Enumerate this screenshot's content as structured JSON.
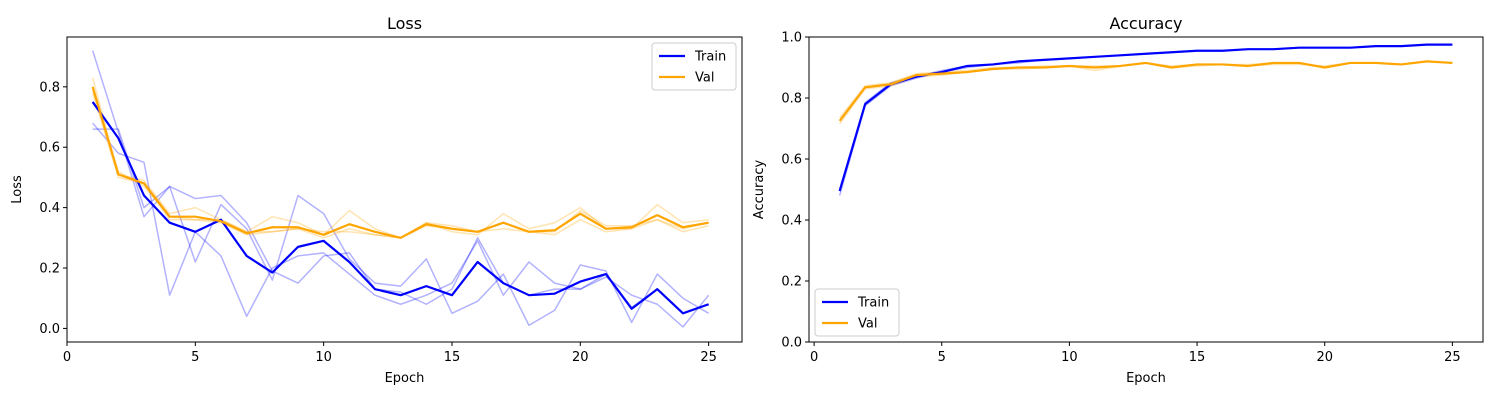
{
  "chart_data": [
    {
      "type": "line",
      "title": "Loss",
      "xlabel": "Epoch",
      "ylabel": "Loss",
      "xlim": [
        0,
        26.3
      ],
      "ylim": [
        -0.045,
        0.965
      ],
      "xticks": [
        0,
        5,
        10,
        15,
        20,
        25
      ],
      "yticks": [
        0.0,
        0.2,
        0.4,
        0.6,
        0.8
      ],
      "ytick_labels": [
        "0.0",
        "0.2",
        "0.4",
        "0.6",
        "0.8"
      ],
      "grid": false,
      "legend_position": "top-right",
      "x": [
        1,
        2,
        3,
        4,
        5,
        6,
        7,
        8,
        9,
        10,
        11,
        12,
        13,
        14,
        15,
        16,
        17,
        18,
        19,
        20,
        21,
        22,
        23,
        24,
        25
      ],
      "series": [
        {
          "name": "Train",
          "color": "#0000ff",
          "values": [
            0.75,
            0.63,
            0.44,
            0.35,
            0.32,
            0.36,
            0.24,
            0.185,
            0.27,
            0.29,
            0.22,
            0.13,
            0.11,
            0.14,
            0.11,
            0.22,
            0.15,
            0.11,
            0.115,
            0.155,
            0.18,
            0.065,
            0.13,
            0.05,
            0.08
          ],
          "runs": [
            [
              0.92,
              0.65,
              0.37,
              0.47,
              0.22,
              0.41,
              0.33,
              0.16,
              0.44,
              0.38,
              0.23,
              0.15,
              0.14,
              0.23,
              0.05,
              0.09,
              0.18,
              0.01,
              0.06,
              0.21,
              0.19,
              0.02,
              0.18,
              0.1,
              0.05
            ],
            [
              0.68,
              0.58,
              0.55,
              0.11,
              0.32,
              0.24,
              0.04,
              0.2,
              0.24,
              0.25,
              0.18,
              0.11,
              0.08,
              0.11,
              0.15,
              0.29,
              0.11,
              0.22,
              0.15,
              0.13,
              0.17,
              0.11,
              0.08,
              0.005,
              0.11
            ],
            [
              0.66,
              0.66,
              0.4,
              0.47,
              0.43,
              0.44,
              0.35,
              0.19,
              0.15,
              0.24,
              0.25,
              0.13,
              0.12,
              0.08,
              0.13,
              0.3,
              0.15,
              0.11,
              0.13,
              0.13,
              0.18,
              0.07,
              0.13,
              0.05,
              0.08
            ]
          ]
        },
        {
          "name": "Val",
          "color": "#ffa500",
          "values": [
            0.8,
            0.51,
            0.48,
            0.37,
            0.37,
            0.355,
            0.315,
            0.335,
            0.335,
            0.31,
            0.345,
            0.32,
            0.3,
            0.345,
            0.33,
            0.32,
            0.35,
            0.32,
            0.325,
            0.38,
            0.33,
            0.335,
            0.375,
            0.335,
            0.35
          ],
          "runs": [
            [
              0.83,
              0.51,
              0.49,
              0.38,
              0.4,
              0.36,
              0.32,
              0.37,
              0.35,
              0.31,
              0.39,
              0.33,
              0.3,
              0.35,
              0.32,
              0.31,
              0.38,
              0.33,
              0.35,
              0.4,
              0.33,
              0.33,
              0.41,
              0.35,
              0.36
            ],
            [
              0.79,
              0.52,
              0.47,
              0.37,
              0.36,
              0.35,
              0.31,
              0.32,
              0.33,
              0.32,
              0.32,
              0.31,
              0.3,
              0.35,
              0.34,
              0.32,
              0.35,
              0.32,
              0.32,
              0.39,
              0.34,
              0.34,
              0.36,
              0.32,
              0.34
            ],
            [
              0.78,
              0.5,
              0.48,
              0.36,
              0.36,
              0.36,
              0.32,
              0.32,
              0.33,
              0.3,
              0.33,
              0.31,
              0.3,
              0.34,
              0.33,
              0.32,
              0.33,
              0.32,
              0.31,
              0.36,
              0.32,
              0.33,
              0.36,
              0.33,
              0.35
            ]
          ]
        }
      ]
    },
    {
      "type": "line",
      "title": "Accuracy",
      "xlabel": "Epoch",
      "ylabel": "Accuracy",
      "xlim": [
        -0.2,
        26.2
      ],
      "ylim": [
        0.0,
        1.0
      ],
      "xticks": [
        0,
        5,
        10,
        15,
        20,
        25
      ],
      "yticks": [
        0.0,
        0.2,
        0.4,
        0.6,
        0.8,
        1.0
      ],
      "ytick_labels": [
        "0.0",
        "0.2",
        "0.4",
        "0.6",
        "0.8",
        "1.0"
      ],
      "grid": false,
      "legend_position": "bottom-left",
      "x": [
        1,
        2,
        3,
        4,
        5,
        6,
        7,
        8,
        9,
        10,
        11,
        12,
        13,
        14,
        15,
        16,
        17,
        18,
        19,
        20,
        21,
        22,
        23,
        24,
        25
      ],
      "series": [
        {
          "name": "Train",
          "color": "#0000ff",
          "values": [
            0.495,
            0.78,
            0.845,
            0.87,
            0.885,
            0.905,
            0.91,
            0.92,
            0.925,
            0.93,
            0.935,
            0.94,
            0.945,
            0.95,
            0.955,
            0.955,
            0.96,
            0.96,
            0.965,
            0.965,
            0.965,
            0.97,
            0.97,
            0.975,
            0.975
          ],
          "runs": [
            [
              0.48,
              0.775,
              0.84,
              0.865,
              0.885,
              0.9,
              0.91,
              0.915,
              0.925,
              0.93,
              0.935,
              0.94,
              0.945,
              0.95,
              0.955,
              0.955,
              0.96,
              0.96,
              0.965,
              0.965,
              0.965,
              0.97,
              0.97,
              0.975,
              0.975
            ],
            [
              0.5,
              0.785,
              0.85,
              0.87,
              0.89,
              0.905,
              0.91,
              0.92,
              0.925,
              0.93,
              0.935,
              0.94,
              0.945,
              0.95,
              0.955,
              0.955,
              0.96,
              0.96,
              0.965,
              0.965,
              0.965,
              0.97,
              0.97,
              0.975,
              0.975
            ]
          ]
        },
        {
          "name": "Val",
          "color": "#ffa500",
          "values": [
            0.725,
            0.835,
            0.845,
            0.875,
            0.88,
            0.885,
            0.895,
            0.9,
            0.9,
            0.905,
            0.9,
            0.905,
            0.915,
            0.9,
            0.91,
            0.91,
            0.905,
            0.915,
            0.915,
            0.9,
            0.915,
            0.915,
            0.91,
            0.92,
            0.915
          ],
          "runs": [
            [
              0.715,
              0.83,
              0.84,
              0.87,
              0.875,
              0.885,
              0.895,
              0.895,
              0.9,
              0.905,
              0.89,
              0.905,
              0.915,
              0.9,
              0.905,
              0.91,
              0.905,
              0.91,
              0.91,
              0.905,
              0.915,
              0.915,
              0.91,
              0.92,
              0.915
            ],
            [
              0.735,
              0.84,
              0.85,
              0.88,
              0.885,
              0.89,
              0.9,
              0.9,
              0.905,
              0.905,
              0.905,
              0.905,
              0.915,
              0.905,
              0.91,
              0.91,
              0.91,
              0.915,
              0.915,
              0.9,
              0.915,
              0.915,
              0.91,
              0.92,
              0.915
            ]
          ]
        }
      ]
    }
  ]
}
